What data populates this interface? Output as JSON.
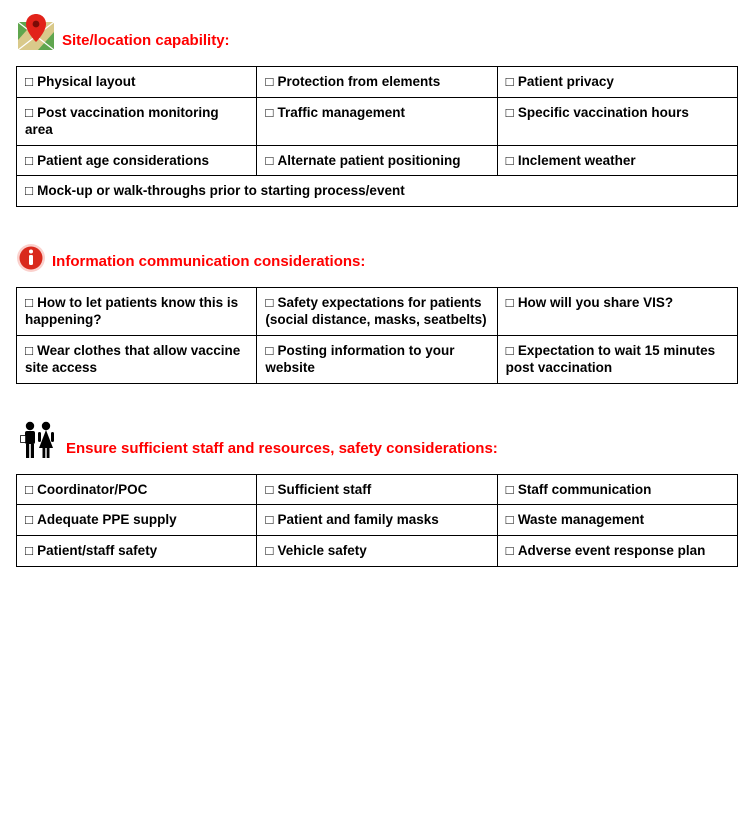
{
  "checkbox_glyph": "□",
  "colors": {
    "heading": "#ff0000",
    "border": "#000000",
    "text": "#000000",
    "background": "#ffffff",
    "info_circle": "#d9291c",
    "info_ring": "#fbd1cd",
    "map_green": "#5fa64e",
    "map_sand": "#d9c98a",
    "pin_red": "#e2231a",
    "people_black": "#000000"
  },
  "sections": [
    {
      "icon": "map-pin-icon",
      "title": "Site/location capability:",
      "rows": [
        [
          "Physical layout",
          "Protection from elements",
          "Patient privacy"
        ],
        [
          "Post vaccination monitoring area",
          "Traffic management",
          "Specific vaccination hours"
        ],
        [
          "Patient age considerations",
          "Alternate patient positioning",
          "Inclement weather"
        ],
        [
          {
            "text": "Mock-up or walk-throughs prior to starting process/event",
            "colspan": 3
          }
        ]
      ]
    },
    {
      "icon": "info-icon",
      "title": "Information communication considerations:",
      "rows": [
        [
          "How to let patients know this is happening?",
          "Safety expectations for patients (social distance, masks, seatbelts)",
          "How will you share VIS?"
        ],
        [
          "Wear clothes that allow vaccine site access",
          "Posting information to your website",
          "Expectation to wait 15 minutes post vaccination"
        ]
      ]
    },
    {
      "icon": "people-icon",
      "title": "Ensure sufficient staff and resources, safety considerations:",
      "rows": [
        [
          "Coordinator/POC",
          "Sufficient staff",
          "Staff communication"
        ],
        [
          "Adequate PPE supply",
          "Patient and family masks",
          "Waste management"
        ],
        [
          "Patient/staff safety",
          "Vehicle safety",
          "Adverse event response plan"
        ]
      ]
    }
  ]
}
